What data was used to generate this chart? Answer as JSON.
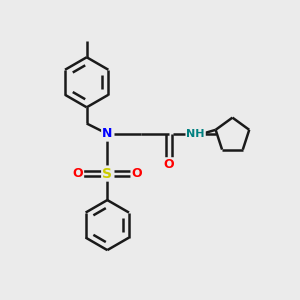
{
  "background_color": "#ebebeb",
  "bond_color": "#1a1a1a",
  "N_color": "#0000ff",
  "O_color": "#ff0000",
  "S_color": "#cccc00",
  "NH_color": "#008080",
  "figsize": [
    3.0,
    3.0
  ],
  "dpi": 100,
  "xlim": [
    0,
    10
  ],
  "ylim": [
    0,
    10
  ],
  "ring_r": 0.85,
  "lw": 1.8
}
